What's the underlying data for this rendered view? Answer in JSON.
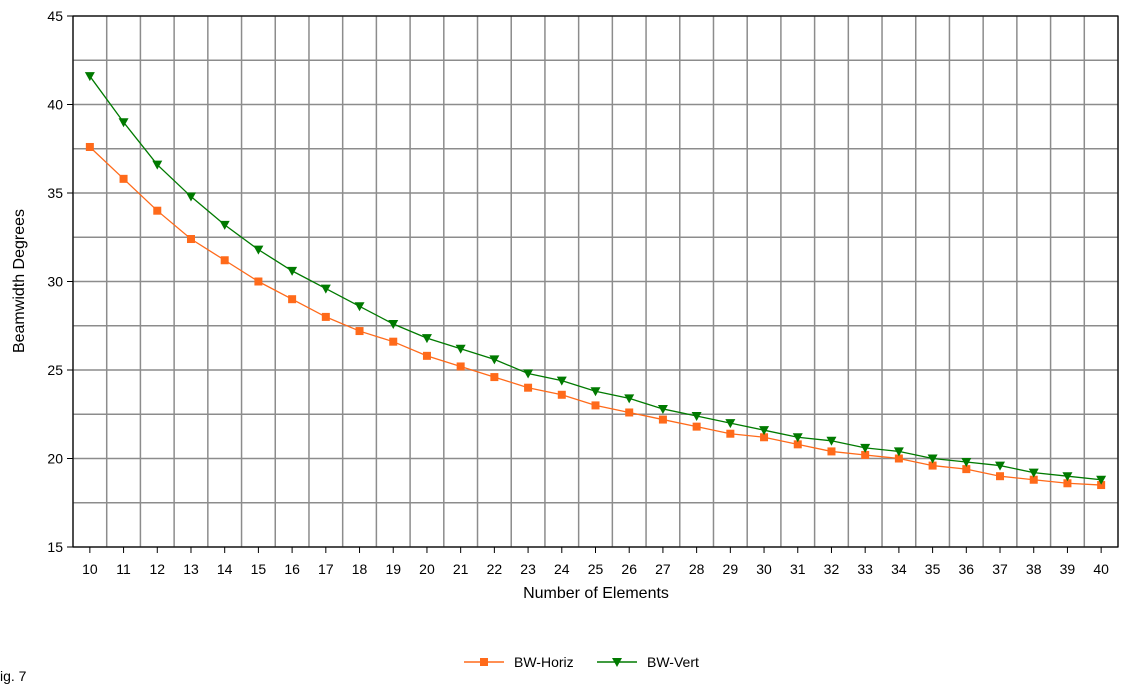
{
  "caption": "ig. 7",
  "chart_data": {
    "type": "line",
    "xlabel": "Number of Elements",
    "ylabel": "Beamwidth Degrees",
    "ylim": [
      15,
      45
    ],
    "yticks": [
      15,
      20,
      25,
      30,
      35,
      40,
      45
    ],
    "y_minor_step": 2.5,
    "grid": true,
    "legend_position": "bottom-center",
    "x": [
      10,
      11,
      12,
      13,
      14,
      15,
      16,
      17,
      18,
      19,
      20,
      21,
      22,
      23,
      24,
      25,
      26,
      27,
      28,
      29,
      30,
      31,
      32,
      33,
      34,
      35,
      36,
      37,
      38,
      39,
      40
    ],
    "series": [
      {
        "name": "BW-Horiz",
        "color": "#ff6a1a",
        "marker": "square",
        "values": [
          37.6,
          35.8,
          34.0,
          32.4,
          31.2,
          30.0,
          29.0,
          28.0,
          27.2,
          26.6,
          25.8,
          25.2,
          24.6,
          24.0,
          23.6,
          23.0,
          22.6,
          22.2,
          21.8,
          21.4,
          21.2,
          20.8,
          20.4,
          20.2,
          20.0,
          19.6,
          19.4,
          19.0,
          18.8,
          18.6,
          18.5
        ]
      },
      {
        "name": "BW-Vert",
        "color": "#007a00",
        "marker": "triangle-down",
        "values": [
          41.6,
          39.0,
          36.6,
          34.8,
          33.2,
          31.8,
          30.6,
          29.6,
          28.6,
          27.6,
          26.8,
          26.2,
          25.6,
          24.8,
          24.4,
          23.8,
          23.4,
          22.8,
          22.4,
          22.0,
          21.6,
          21.2,
          21.0,
          20.6,
          20.4,
          20.0,
          19.8,
          19.6,
          19.2,
          19.0,
          18.8
        ]
      }
    ]
  }
}
